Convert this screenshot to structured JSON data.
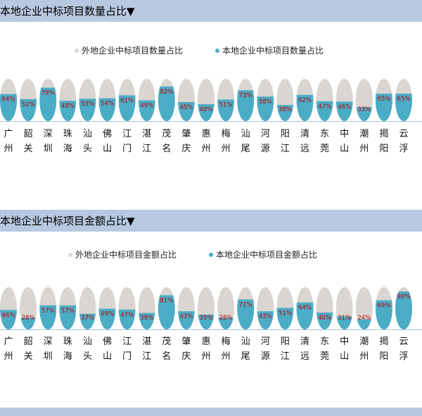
{
  "colors": {
    "header_bg": "#b6c9e1",
    "outer": "#d9d6d1",
    "local": "#4bacc6",
    "value_text": "#c00000",
    "baseline": "#9fc3da"
  },
  "sections": [
    {
      "header": "本地企业中标项目数量占比▼",
      "chart_data": {
        "type": "bar",
        "categories": [
          "广州",
          "韶关",
          "深圳",
          "珠海",
          "汕头",
          "佛山",
          "江门",
          "湛江",
          "茂名",
          "肇庆",
          "惠州",
          "梅州",
          "汕尾",
          "河源",
          "阳江",
          "清远",
          "东莞",
          "中山",
          "潮州",
          "揭阳",
          "云浮"
        ],
        "series": [
          {
            "name": "外地企业中标项目数量占比",
            "values": [
              36,
              48,
              21,
              52,
              47,
              46,
              39,
              51,
              18,
              55,
              60,
              49,
              27,
              42,
              62,
              38,
              53,
              54,
              67,
              35,
              35
            ]
          },
          {
            "name": "本地企业中标项目数量占比",
            "values": [
              64,
              52,
              79,
              48,
              53,
              54,
              61,
              49,
              82,
              45,
              40,
              51,
              73,
              58,
              38,
              62,
              47,
              46,
              33,
              65,
              65
            ]
          }
        ],
        "labels": [
          "64%",
          "52%",
          "79%",
          "48%",
          "53%",
          "54%",
          "61%",
          "49%",
          "82%",
          "45%",
          "40%",
          "51%",
          "73%",
          "58%",
          "38%",
          "62%",
          "47%",
          "46%",
          "33%",
          "65%",
          "65%"
        ],
        "ylim": [
          0,
          100
        ]
      }
    },
    {
      "header": "本地企业中标项目金额占比▼",
      "chart_data": {
        "type": "bar",
        "categories": [
          "广州",
          "韶关",
          "深圳",
          "珠海",
          "汕头",
          "佛山",
          "江门",
          "湛江",
          "茂名",
          "肇庆",
          "惠州",
          "梅州",
          "汕尾",
          "河源",
          "阳江",
          "清远",
          "东莞",
          "中山",
          "潮州",
          "揭阳",
          "云浮"
        ],
        "series": [
          {
            "name": "外地企业中标项目金额占比",
            "values": [
              54,
              72,
              43,
              43,
              63,
              51,
              53,
              61,
              19,
              57,
              65,
              72,
              29,
              57,
              49,
              36,
              60,
              69,
              76,
              31,
              10
            ]
          },
          {
            "name": "本地企业中标项目金额占比",
            "values": [
              46,
              28,
              57,
              57,
              37,
              49,
              47,
              39,
              81,
              43,
              35,
              28,
              71,
              43,
              51,
              64,
              40,
              31,
              24,
              69,
              90
            ]
          }
        ],
        "labels": [
          "46%",
          "28%",
          "57%",
          "57%",
          "37%",
          "49%",
          "47%",
          "39%",
          "81%",
          "43%",
          "35%",
          "28%",
          "71%",
          "43%",
          "51%",
          "64%",
          "40%",
          "31%",
          "24%",
          "69%",
          "90%"
        ],
        "ylim": [
          0,
          100
        ]
      }
    }
  ]
}
